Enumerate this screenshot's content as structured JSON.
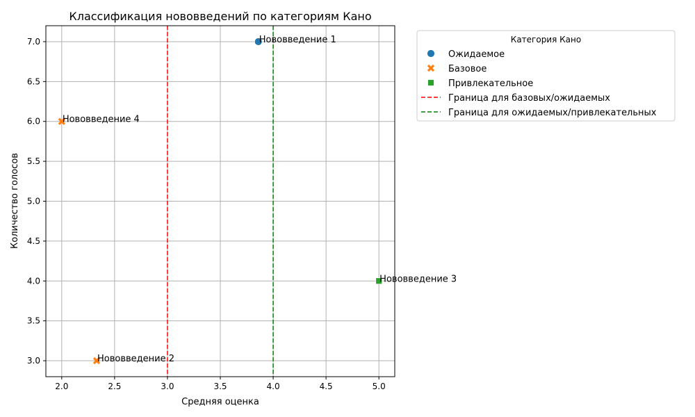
{
  "chart_data": {
    "type": "scatter",
    "title": "Классификация нововведений по категориям Кано",
    "xlabel": "Средняя оценка",
    "ylabel": "Количество голосов",
    "xlim": [
      1.85,
      5.15
    ],
    "ylim": [
      2.8,
      7.2
    ],
    "xticks": [
      "2.0",
      "2.5",
      "3.0",
      "3.5",
      "4.0",
      "4.5",
      "5.0"
    ],
    "yticks": [
      "3.0",
      "3.5",
      "4.0",
      "4.5",
      "5.0",
      "5.5",
      "6.0",
      "6.5",
      "7.0"
    ],
    "grid": true,
    "points": [
      {
        "label": "Нововведение 1",
        "x": 3.86,
        "y": 7,
        "category": "Ожидаемое"
      },
      {
        "label": "Нововведение 2",
        "x": 2.33,
        "y": 3,
        "category": "Базовое"
      },
      {
        "label": "Нововведение 3",
        "x": 5.0,
        "y": 4,
        "category": "Привлекательное"
      },
      {
        "label": "Нововведение 4",
        "x": 2.0,
        "y": 6,
        "category": "Базовое"
      }
    ],
    "categories": [
      {
        "name": "Ожидаемое",
        "marker": "circle",
        "color": "#1f77b4"
      },
      {
        "name": "Базовое",
        "marker": "x",
        "color": "#ff7f0e"
      },
      {
        "name": "Привлекательное",
        "marker": "square",
        "color": "#2ca02c"
      }
    ],
    "vlines": [
      {
        "x": 3.0,
        "label": "Граница для базовых/ожидаемых",
        "color": "#ff0000"
      },
      {
        "x": 4.0,
        "label": "Граница для ожидаемых/привлекательных",
        "color": "#008000"
      }
    ],
    "legend": {
      "title": "Категория Кано",
      "placement": "outside-right-top"
    }
  }
}
